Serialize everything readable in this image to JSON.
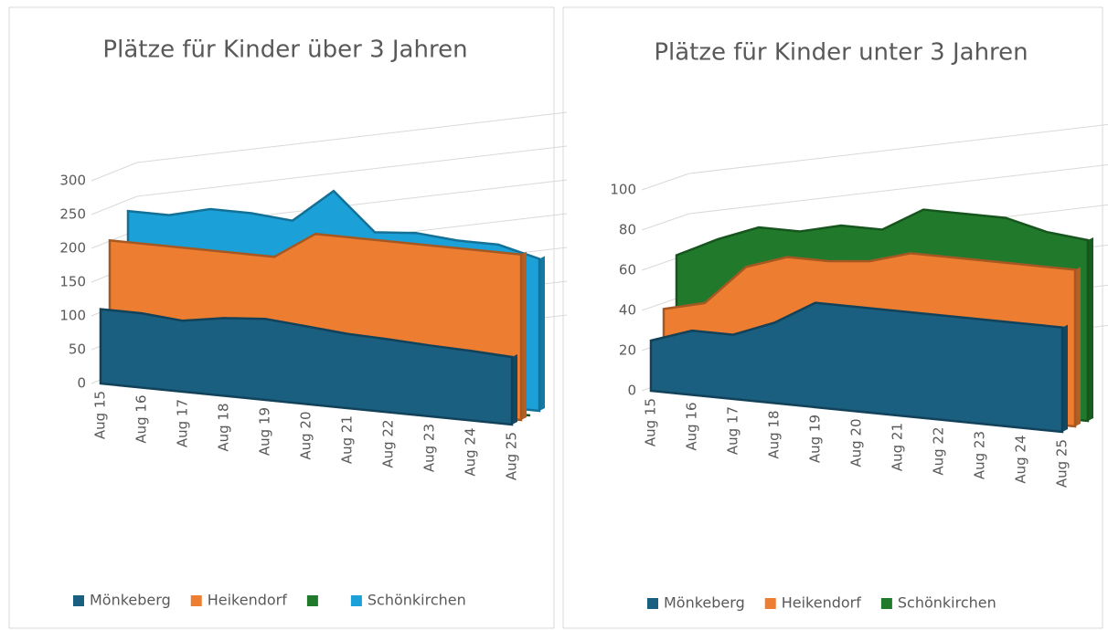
{
  "chart_data": [
    {
      "type": "area3d",
      "title": "Plätze für Kinder über 3 Jahren",
      "categories": [
        "Aug 15",
        "Aug 16",
        "Aug 17",
        "Aug 18",
        "Aug 19",
        "Aug 20",
        "Aug 21",
        "Aug 22",
        "Aug 23",
        "Aug 24",
        "Aug 25"
      ],
      "ylim": [
        0,
        300
      ],
      "yticks": [
        0,
        50,
        100,
        150,
        200,
        250,
        300
      ],
      "grid": true,
      "series": [
        {
          "name": "Mönkeberg",
          "color": "#1a5e80",
          "values": [
            110,
            110,
            105,
            115,
            120,
            115,
            110,
            108,
            105,
            103,
            100
          ]
        },
        {
          "name": "Heikendorf",
          "color": "#ed7d31",
          "values": [
            205,
            205,
            205,
            205,
            205,
            245,
            245,
            245,
            245,
            245,
            245
          ]
        },
        {
          "color": "#217a2b",
          "values": [
            0,
            0,
            0,
            0,
            0,
            0,
            0,
            0,
            0,
            0,
            0
          ]
        },
        {
          "name": "Schönkirchen",
          "color": "#1ba1d8",
          "values": [
            235,
            235,
            250,
            250,
            245,
            295,
            240,
            245,
            240,
            240,
            225
          ]
        }
      ]
    },
    {
      "type": "area3d",
      "title": "Plätze für Kinder unter 3 Jahren",
      "categories": [
        "Aug 15",
        "Aug 16",
        "Aug 17",
        "Aug 18",
        "Aug 19",
        "Aug 20",
        "Aug 21",
        "Aug 22",
        "Aug 23",
        "Aug 24",
        "Aug 25"
      ],
      "ylim": [
        0,
        100
      ],
      "yticks": [
        0,
        20,
        40,
        60,
        80,
        100
      ],
      "grid": true,
      "series": [
        {
          "name": "Mönkeberg",
          "color": "#1a5e80",
          "values": [
            25,
            32,
            32,
            40,
            52,
            52,
            52,
            52,
            52,
            52,
            52
          ]
        },
        {
          "name": "Heikendorf",
          "color": "#ed7d31",
          "values": [
            38,
            43,
            63,
            70,
            70,
            72,
            78,
            78,
            78,
            78,
            78
          ]
        },
        {
          "name": "Schönkirchen",
          "color": "#217a2b",
          "values": [
            62,
            72,
            80,
            80,
            85,
            85,
            97,
            97,
            97,
            92,
            90
          ]
        }
      ]
    }
  ]
}
